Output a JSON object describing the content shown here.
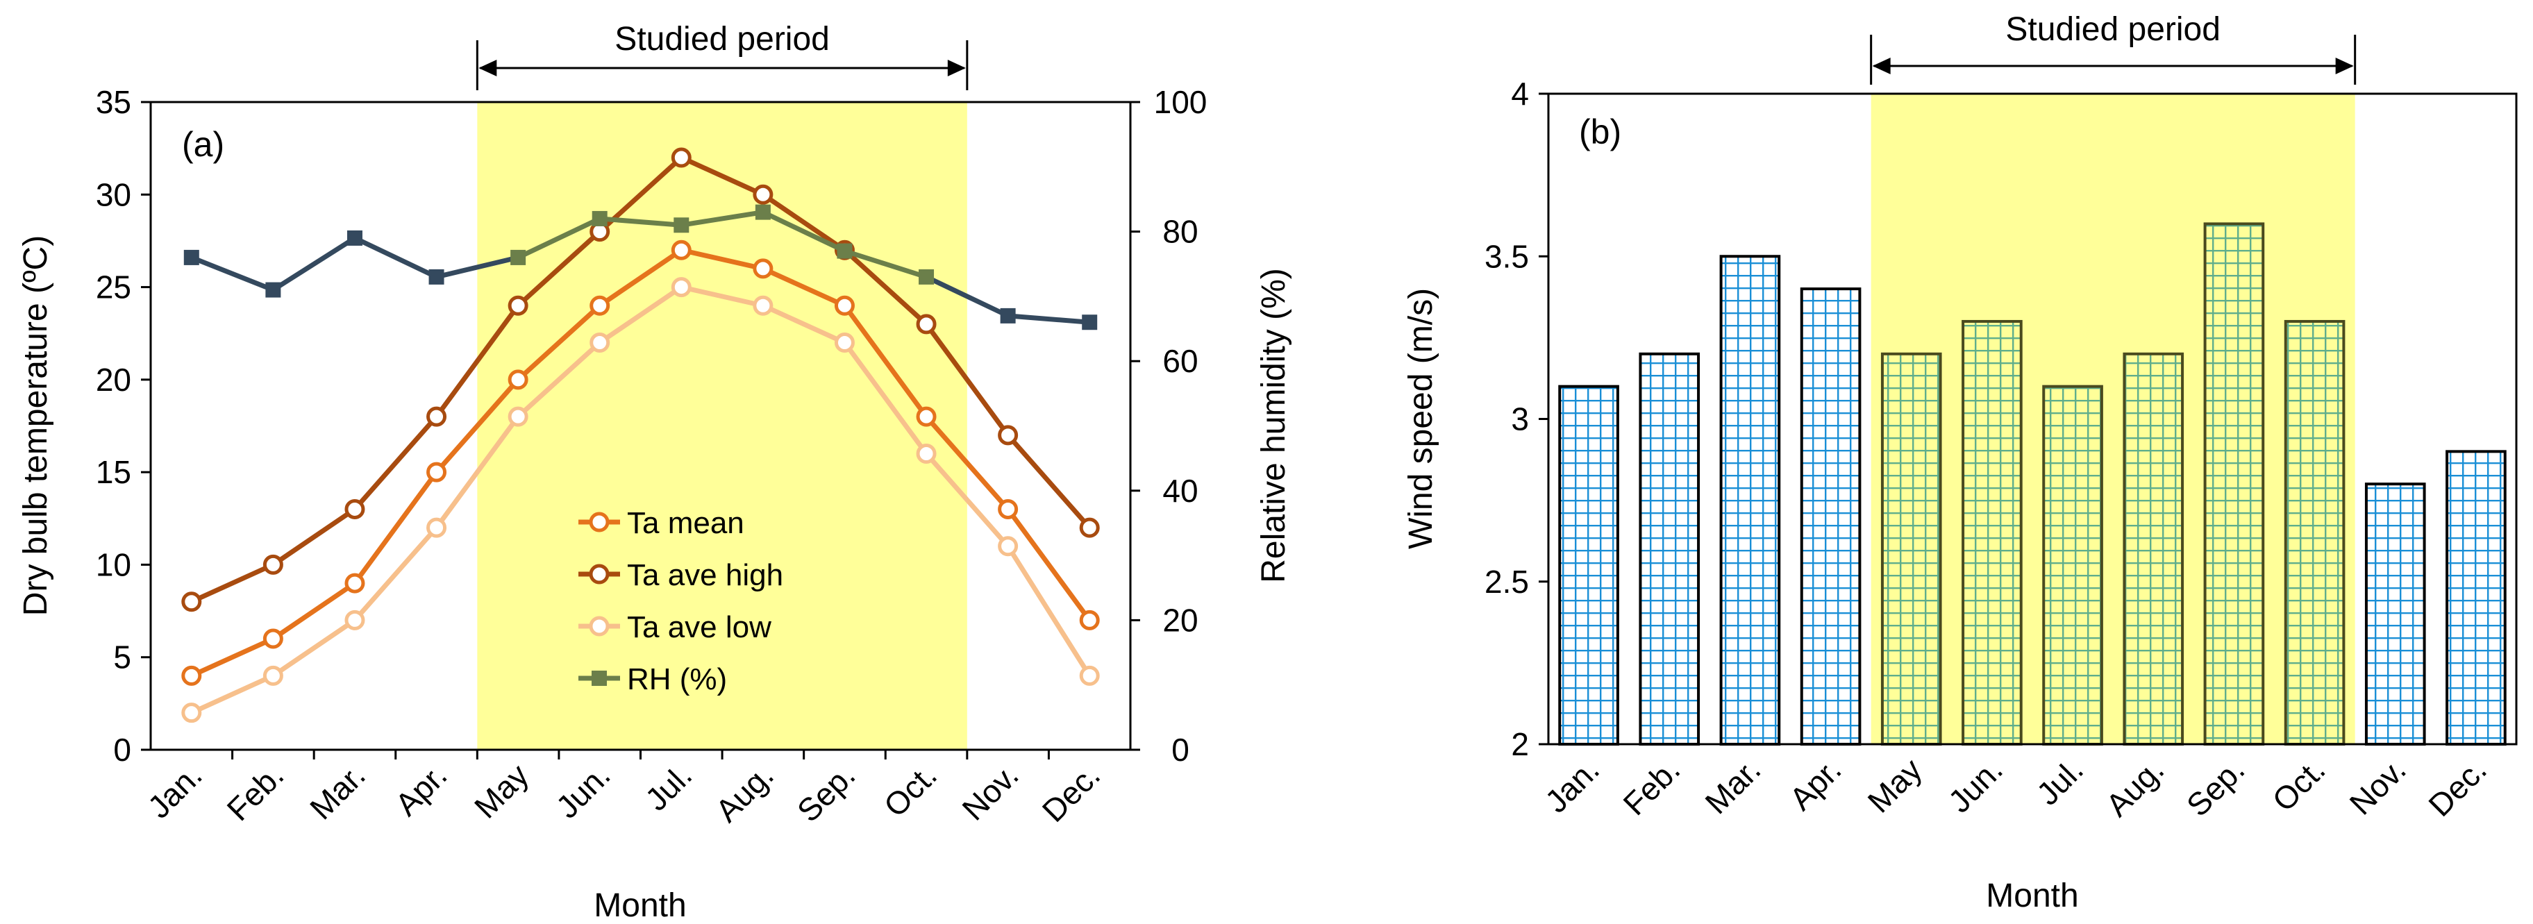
{
  "chart_data": [
    {
      "type": "line",
      "panel_label": "(a)",
      "categories": [
        "Jan.",
        "Feb.",
        "Mar.",
        "Apr.",
        "May",
        "Jun.",
        "Jul.",
        "Aug.",
        "Sep.",
        "Oct.",
        "Nov.",
        "Dec."
      ],
      "xlabel": "Month",
      "ylabel": "Dry bulb temperature (ºC)",
      "ylabel2": "Relative humidity (%)",
      "ylim": [
        0,
        35
      ],
      "ylim2": [
        0,
        100
      ],
      "yticks": [
        0,
        5,
        10,
        15,
        20,
        25,
        30,
        35
      ],
      "yticks2": [
        0,
        20,
        40,
        60,
        80,
        100
      ],
      "studied_period": {
        "label": "Studied period",
        "start": "May",
        "end": "Oct.",
        "color": "#ffff99"
      },
      "legend_position": "center",
      "series": [
        {
          "name": "Ta mean",
          "axis": "left",
          "marker": "circle",
          "color": "#e5731c",
          "values": [
            4,
            6,
            9,
            15,
            20,
            24,
            27,
            26,
            24,
            18,
            13,
            7
          ]
        },
        {
          "name": "Ta ave high",
          "axis": "left",
          "marker": "circle",
          "color": "#a84b0f",
          "values": [
            8,
            10,
            13,
            18,
            24,
            28,
            32,
            30,
            27,
            23,
            17,
            12
          ]
        },
        {
          "name": "Ta ave low",
          "axis": "left",
          "marker": "circle",
          "color": "#f7c08c",
          "values": [
            2,
            4,
            7,
            12,
            18,
            22,
            25,
            24,
            22,
            16,
            11,
            4
          ]
        },
        {
          "name": "RH (%)",
          "axis": "right",
          "marker": "square",
          "color": "#34495e",
          "color_in_period": "#6b7f4a",
          "values": [
            76,
            71,
            79,
            73,
            76,
            82,
            81,
            83,
            77,
            73,
            67,
            66
          ]
        }
      ]
    },
    {
      "type": "bar",
      "panel_label": "(b)",
      "categories": [
        "Jan.",
        "Feb.",
        "Mar.",
        "Apr.",
        "May",
        "Jun.",
        "Jul.",
        "Aug.",
        "Sep.",
        "Oct.",
        "Nov.",
        "Dec."
      ],
      "values": [
        3.1,
        3.2,
        3.5,
        3.4,
        3.2,
        3.3,
        3.1,
        3.2,
        3.6,
        3.3,
        2.8,
        2.9
      ],
      "xlabel": "Month",
      "ylabel": "Wind speed (m/s)",
      "ylim": [
        2,
        4
      ],
      "yticks": [
        2,
        2.5,
        3,
        3.5,
        4
      ],
      "studied_period": {
        "label": "Studied period",
        "start": "May",
        "end": "Oct.",
        "color": "#ffff99"
      },
      "bar_grid_color": "#1a8fd6",
      "bar_grid_color_in_period": "#5fae8c"
    }
  ]
}
